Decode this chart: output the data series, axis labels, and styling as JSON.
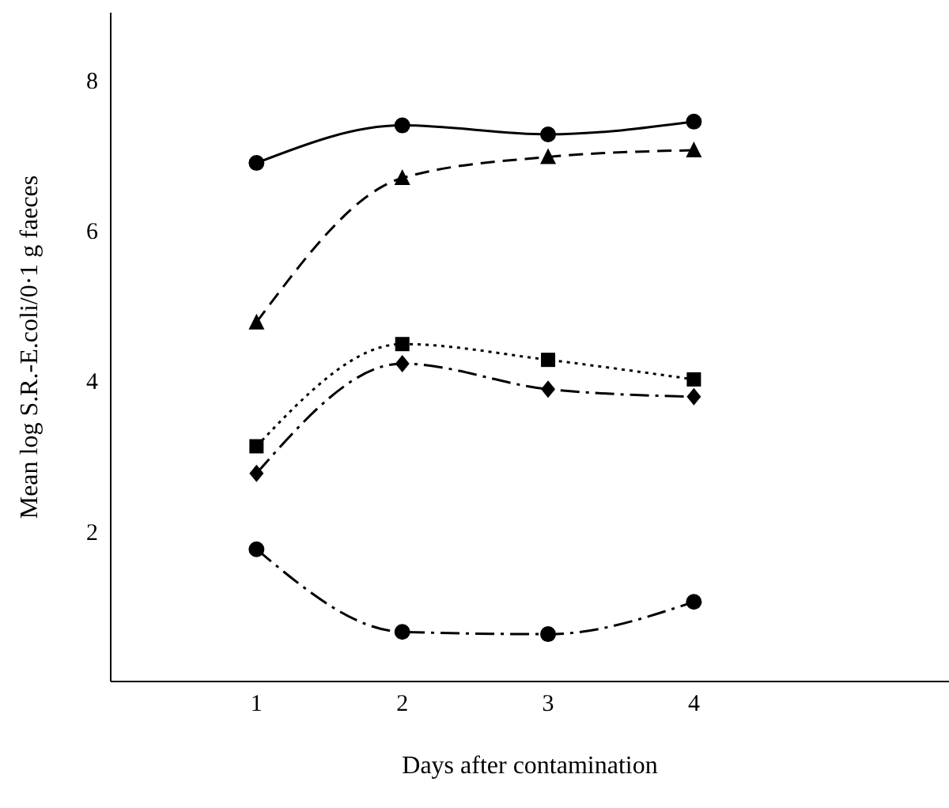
{
  "chart_data": {
    "type": "line",
    "xlabel": "Days after contamination",
    "ylabel": "Mean log S.R.-E.coli/0·1 g faeces",
    "x": [
      1,
      2,
      3,
      4
    ],
    "series": [
      {
        "color": "#000000",
        "marker": "circle",
        "line_style": "solid",
        "values": [
          6.9,
          7.4,
          7.28,
          7.45
        ]
      },
      {
        "color": "#000000",
        "marker": "triangle",
        "line_style": "dashed",
        "values": [
          4.78,
          6.7,
          6.98,
          7.07
        ]
      },
      {
        "color": "#000000",
        "marker": "square",
        "line_style": "dotted",
        "values": [
          3.13,
          4.49,
          4.28,
          4.02
        ]
      },
      {
        "color": "#000000",
        "marker": "diamond",
        "line_style": "dashdot",
        "values": [
          2.77,
          4.23,
          3.89,
          3.79
        ]
      },
      {
        "color": "#000000",
        "marker": "circle",
        "line_style": "dashdot",
        "values": [
          1.76,
          0.66,
          0.63,
          1.06
        ]
      }
    ],
    "xlim": [
      0,
      5.75
    ],
    "xticks": [
      1,
      2,
      3,
      4
    ],
    "ylim": [
      0,
      8.9
    ],
    "yticks": [
      2,
      4,
      6,
      8
    ],
    "grid": false,
    "legend": false
  }
}
